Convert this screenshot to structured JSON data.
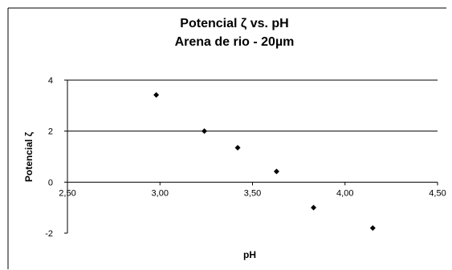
{
  "chart_data": {
    "type": "scatter",
    "title_lines": [
      "Potencial ζ vs. pH",
      "Arena de rio - 20µm"
    ],
    "xlabel": "pH",
    "ylabel": "Potencial ζ",
    "xlim": [
      2.5,
      4.5
    ],
    "ylim": [
      -2,
      4
    ],
    "x_ticks": [
      2.5,
      3.0,
      3.5,
      4.0,
      4.5
    ],
    "x_tick_labels": [
      "2,50",
      "3,00",
      "3,50",
      "4,00",
      "4,50"
    ],
    "y_ticks": [
      -2,
      0,
      2,
      4
    ],
    "y_tick_labels": [
      "-2",
      "0",
      "2",
      "4"
    ],
    "grid": {
      "horizontal_major": true,
      "vertical_major": false
    },
    "series": [
      {
        "x": [
          2.98,
          3.24,
          3.42,
          3.63,
          3.83,
          4.15
        ],
        "y": [
          3.42,
          2.0,
          1.35,
          0.42,
          -1.0,
          -1.8
        ]
      }
    ],
    "colors": {
      "marker": "#000000",
      "axis": "#000000",
      "grid": "#000000"
    }
  }
}
